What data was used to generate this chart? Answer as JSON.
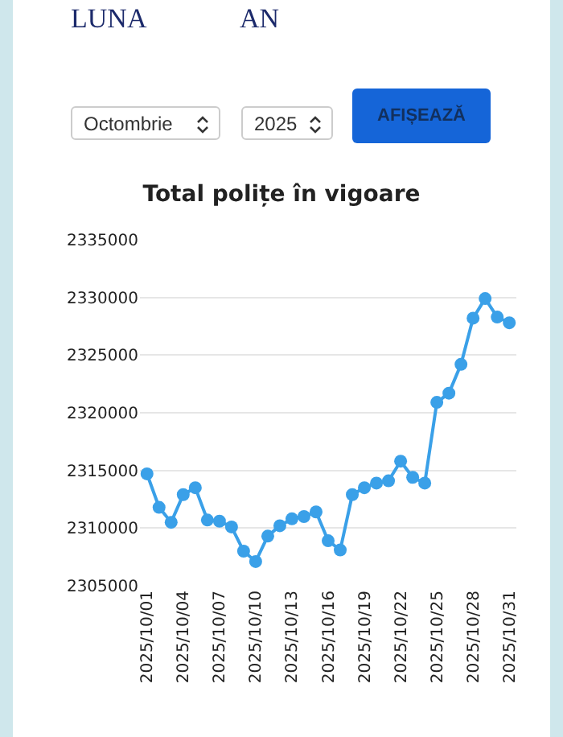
{
  "chart_data": {
    "type": "line",
    "title": "Total polițe în vigoare",
    "annotations": [
      "LUNA",
      "AN",
      "Octombrie",
      "2025",
      "AFIȘEAZĂ"
    ],
    "x": [
      "2025-10-01",
      "2025-10-02",
      "2025-10-03",
      "2025-10-04",
      "2025-10-05",
      "2025-10-06",
      "2025-10-07",
      "2025-10-08",
      "2025-10-09",
      "2025-10-10",
      "2025-10-11",
      "2025-10-12",
      "2025-10-13",
      "2025-10-14",
      "2025-10-15",
      "2025-10-16",
      "2025-10-17",
      "2025-10-18",
      "2025-10-19",
      "2025-10-20",
      "2025-10-21",
      "2025-10-22",
      "2025-10-23",
      "2025-10-24",
      "2025-10-25",
      "2025-10-26",
      "2025-10-27",
      "2025-10-28",
      "2025-10-29",
      "2025-10-30",
      "2025-10-31"
    ],
    "series": [
      {
        "color": "#3aa0e8",
        "values": [
          2314700,
          2311800,
          2310500,
          2312900,
          2313500,
          2310700,
          2310600,
          2310100,
          2308000,
          2307100,
          2309300,
          2310200,
          2310800,
          2311000,
          2311400,
          2308900,
          2308100,
          2312900,
          2313500,
          2313900,
          2314100,
          2315800,
          2314400,
          2313900,
          2320900,
          2321700,
          2324200,
          2328200,
          2329900,
          2328300,
          2327800
        ]
      }
    ],
    "xlim": [
      "2025-09-30T10:00",
      "2025-10-31T14:00"
    ],
    "xticks": [
      {
        "value": "2025-10-01",
        "label": "2025/10/01"
      },
      {
        "value": "2025-10-04",
        "label": "2025/10/04"
      },
      {
        "value": "2025-10-07",
        "label": "2025/10/07"
      },
      {
        "value": "2025-10-10",
        "label": "2025/10/10"
      },
      {
        "value": "2025-10-13",
        "label": "2025/10/13"
      },
      {
        "value": "2025-10-16",
        "label": "2025/10/16"
      },
      {
        "value": "2025-10-19",
        "label": "2025/10/19"
      },
      {
        "value": "2025-10-22",
        "label": "2025/10/22"
      },
      {
        "value": "2025-10-25",
        "label": "2025/10/25"
      },
      {
        "value": "2025-10-28",
        "label": "2025/10/28"
      },
      {
        "value": "2025-10-31",
        "label": "2025/10/31"
      }
    ],
    "ylim": [
      2305000,
      2335000
    ],
    "yticks": [
      2305000,
      2310000,
      2315000,
      2320000,
      2325000,
      2330000,
      2335000
    ],
    "grid": "y",
    "marker": "circle",
    "line_style": "solid"
  }
}
